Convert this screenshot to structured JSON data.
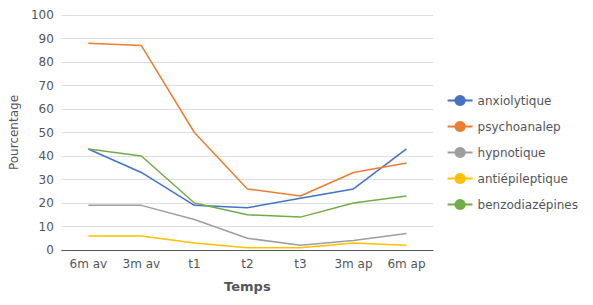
{
  "chart_data": {
    "type": "line",
    "categories": [
      "6m av",
      "3m av",
      "t1",
      "t2",
      "t3",
      "3m ap",
      "6m ap"
    ],
    "series": [
      {
        "name": "anxiolytique",
        "color": "#4472C4",
        "values": [
          43,
          33,
          19,
          18,
          22,
          26,
          43
        ]
      },
      {
        "name": "psychoanalep",
        "color": "#ED7D31",
        "values": [
          88,
          87,
          50,
          26,
          23,
          33,
          37
        ]
      },
      {
        "name": "hypnotique",
        "color": "#9E9E9E",
        "values": [
          19,
          19,
          13,
          5,
          2,
          4,
          7
        ]
      },
      {
        "name": "antiépileptique",
        "color": "#FFC000",
        "values": [
          6,
          6,
          3,
          1,
          1,
          3,
          2
        ]
      },
      {
        "name": "benzodiazépines",
        "color": "#70AD47",
        "values": [
          43,
          40,
          20,
          15,
          14,
          20,
          23
        ]
      }
    ],
    "xlabel": "Temps",
    "ylabel": "Pourcentage",
    "ylim": [
      0,
      100
    ],
    "yticks": [
      0,
      10,
      20,
      30,
      40,
      50,
      60,
      70,
      80,
      90,
      100
    ],
    "grid": true,
    "legend": "right"
  }
}
